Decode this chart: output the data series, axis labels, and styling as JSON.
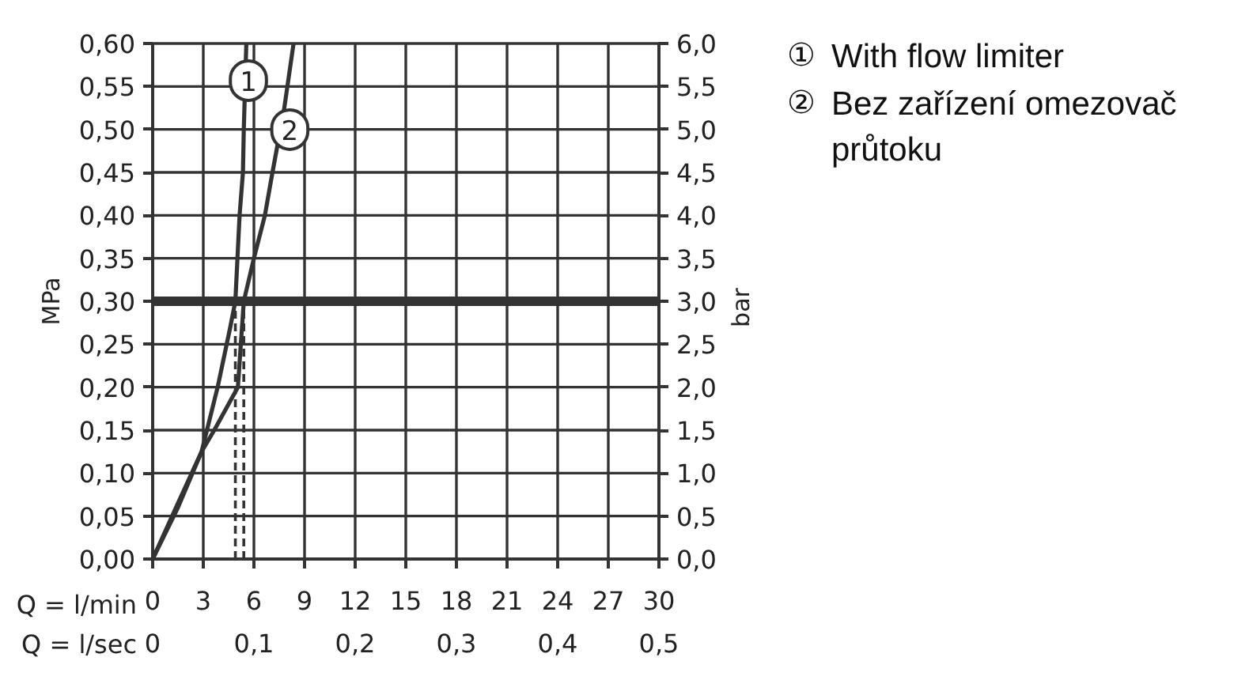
{
  "chart_data": {
    "type": "line",
    "xlabel": "Q = l/min",
    "x2label": "Q = l/sec",
    "ylabel": "MPa",
    "y2label": "bar",
    "xlim": [
      0,
      30
    ],
    "xticks": [
      0,
      3,
      6,
      9,
      12,
      15,
      18,
      21,
      24,
      27,
      30
    ],
    "x2lim": [
      0,
      0.5
    ],
    "x2ticks": [
      0,
      {
        "value": 0.1,
        "label": "0,1"
      },
      {
        "value": 0.2,
        "label": "0,2"
      },
      {
        "value": 0.3,
        "label": "0,3"
      },
      {
        "value": 0.4,
        "label": "0,4"
      },
      {
        "value": 0.5,
        "label": "0,5"
      }
    ],
    "ylim": [
      0,
      0.6
    ],
    "yticks": [
      {
        "value": 0,
        "label": "0,00"
      },
      {
        "value": 0.05,
        "label": "0,05"
      },
      {
        "value": 0.1,
        "label": "0,10"
      },
      {
        "value": 0.15,
        "label": "0,15"
      },
      {
        "value": 0.2,
        "label": "0,20"
      },
      {
        "value": 0.25,
        "label": "0,25"
      },
      {
        "value": 0.3,
        "label": "0,30"
      },
      {
        "value": 0.35,
        "label": "0,35"
      },
      {
        "value": 0.4,
        "label": "0,40"
      },
      {
        "value": 0.45,
        "label": "0,45"
      },
      {
        "value": 0.5,
        "label": "0,50"
      },
      {
        "value": 0.55,
        "label": "0,55"
      },
      {
        "value": 0.6,
        "label": "0,60"
      }
    ],
    "y2lim": [
      0,
      6
    ],
    "y2ticks": [
      {
        "value": 0,
        "label": "0,0"
      },
      {
        "value": 0.5,
        "label": "0,5"
      },
      {
        "value": 1,
        "label": "1,0"
      },
      {
        "value": 1.5,
        "label": "1,5"
      },
      {
        "value": 2,
        "label": "2,0"
      },
      {
        "value": 2.5,
        "label": "2,5"
      },
      {
        "value": 3,
        "label": "3,0"
      },
      {
        "value": 3.5,
        "label": "3,5"
      },
      {
        "value": 4,
        "label": "4,0"
      },
      {
        "value": 4.5,
        "label": "4,5"
      },
      {
        "value": 5,
        "label": "5,0"
      },
      {
        "value": 5.5,
        "label": "5,5"
      },
      {
        "value": 6,
        "label": "6,0"
      }
    ],
    "grid": true,
    "ref_lines": [
      {
        "axis": "y",
        "value": 0.3,
        "color": "#333333"
      }
    ],
    "series": [
      {
        "name": "1",
        "color": "#333333",
        "x": [
          0,
          1.5,
          2.9,
          3.85,
          4.6,
          4.9,
          5.15,
          5.35,
          5.4,
          5.55
        ],
        "values": [
          0,
          0.065,
          0.125,
          0.2,
          0.27,
          0.3,
          0.4,
          0.45,
          0.5,
          0.6
        ]
      },
      {
        "name": "2",
        "color": "#333333",
        "x": [
          0,
          1.5,
          2.9,
          3.65,
          5.05,
          5.4,
          6.0,
          6.65,
          7.1,
          7.8,
          8.35
        ],
        "values": [
          0,
          0.06,
          0.125,
          0.15,
          0.2,
          0.3,
          0.35,
          0.4,
          0.45,
          0.525,
          0.6
        ]
      },
      {
        "color": "#333333",
        "x": [
          4.9,
          4.9
        ],
        "values": [
          0,
          0.3
        ],
        "line_style": "dashed"
      },
      {
        "color": "#333333",
        "x": [
          5.4,
          5.4
        ],
        "values": [
          0,
          0.3
        ],
        "line_style": "dashed"
      }
    ],
    "annotations": [
      "① With flow limiter",
      "② Bez zařízení omezovač průtoku"
    ]
  }
}
